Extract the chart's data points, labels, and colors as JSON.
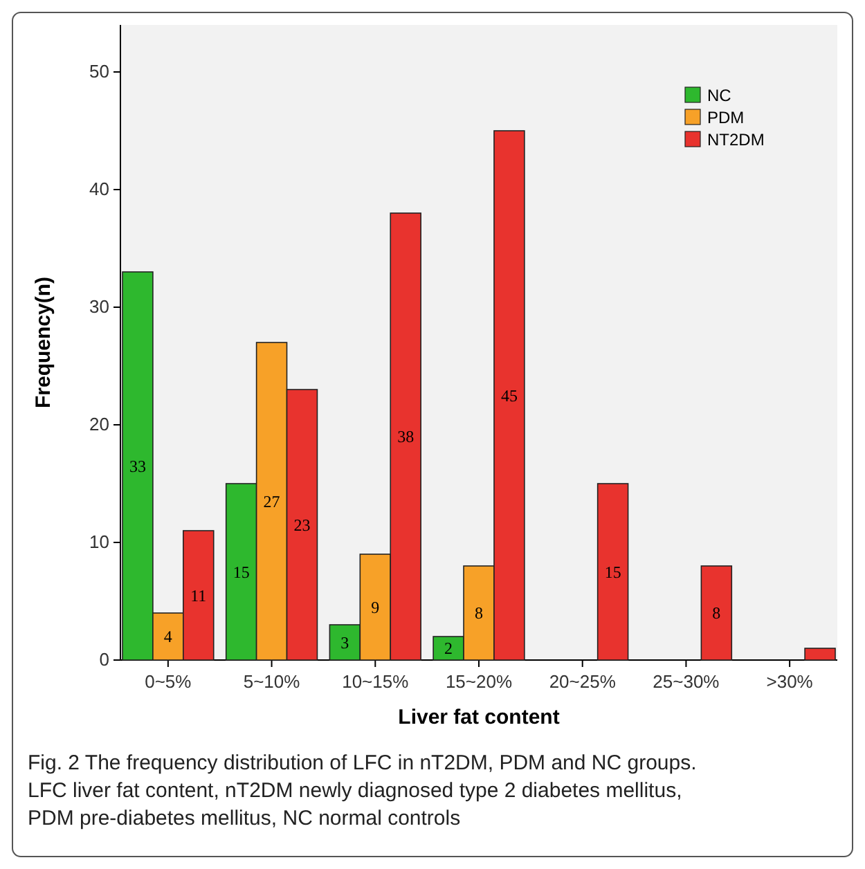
{
  "chart_data": {
    "type": "bar",
    "xlabel": "Liver fat content",
    "ylabel": "Frequency(n)",
    "categories": [
      "0~5%",
      "5~10%",
      "10~15%",
      "15~20%",
      "20~25%",
      "25~30%",
      ">30%"
    ],
    "series": [
      {
        "name": "NC",
        "color": "#2eb82e",
        "values": [
          33,
          15,
          3,
          2,
          0,
          0,
          0
        ],
        "value_labels": [
          "33",
          "15",
          "3",
          "2",
          null,
          null,
          null
        ]
      },
      {
        "name": "PDM",
        "color": "#f7a128",
        "values": [
          4,
          27,
          9,
          8,
          0,
          0,
          0
        ],
        "value_labels": [
          "4",
          "27",
          "9",
          "8",
          null,
          null,
          null
        ]
      },
      {
        "name": "NT2DM",
        "color": "#e8332e",
        "values": [
          11,
          23,
          38,
          45,
          15,
          8,
          1
        ],
        "value_labels": [
          "11",
          "23",
          "38",
          "45",
          "15",
          "8",
          null
        ]
      }
    ],
    "ylim": [
      0,
      54
    ],
    "yticks": [
      0,
      10,
      20,
      30,
      40,
      50
    ],
    "grid": false,
    "legend": "top right",
    "annotations": [
      "Fig. 2  The frequency distribution of LFC in nT2DM, PDM and NC groups. LFC liver fat content, nT2DM newly diagnosed type 2 diabetes mellitus, PDM pre-diabetes mellitus, NC normal controls"
    ]
  }
}
